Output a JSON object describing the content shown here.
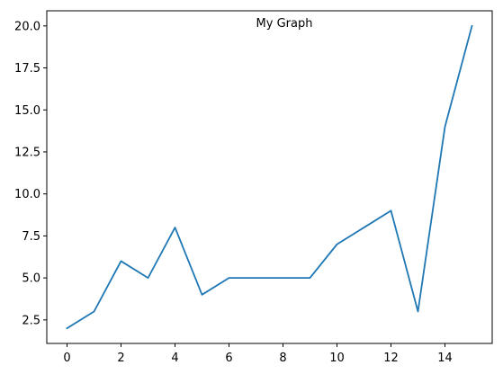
{
  "chart_data": {
    "type": "line",
    "title": "My Graph",
    "xlabel": "",
    "ylabel": "",
    "x": [
      0,
      1,
      2,
      3,
      4,
      5,
      6,
      7,
      8,
      9,
      10,
      11,
      12,
      13,
      14,
      15
    ],
    "series": [
      {
        "values": [
          2,
          3,
          6,
          5,
          8,
          4,
          5,
          5,
          5,
          5,
          7,
          8,
          9,
          3,
          14,
          20
        ],
        "color": "#1f77b4"
      }
    ],
    "xlim": [
      -0.75,
      15.75
    ],
    "ylim": [
      1.1,
      20.9
    ],
    "xticks": [
      0,
      2,
      4,
      6,
      8,
      10,
      12,
      14
    ],
    "xtick_labels": [
      "0",
      "2",
      "4",
      "6",
      "8",
      "10",
      "12",
      "14"
    ],
    "yticks": [
      2.5,
      5.0,
      7.5,
      10.0,
      12.5,
      15.0,
      17.5,
      20.0
    ],
    "ytick_labels": [
      "2.5",
      "5.0",
      "7.5",
      "10.0",
      "12.5",
      "15.0",
      "17.5",
      "20.0"
    ],
    "grid": false,
    "legend": "none"
  }
}
